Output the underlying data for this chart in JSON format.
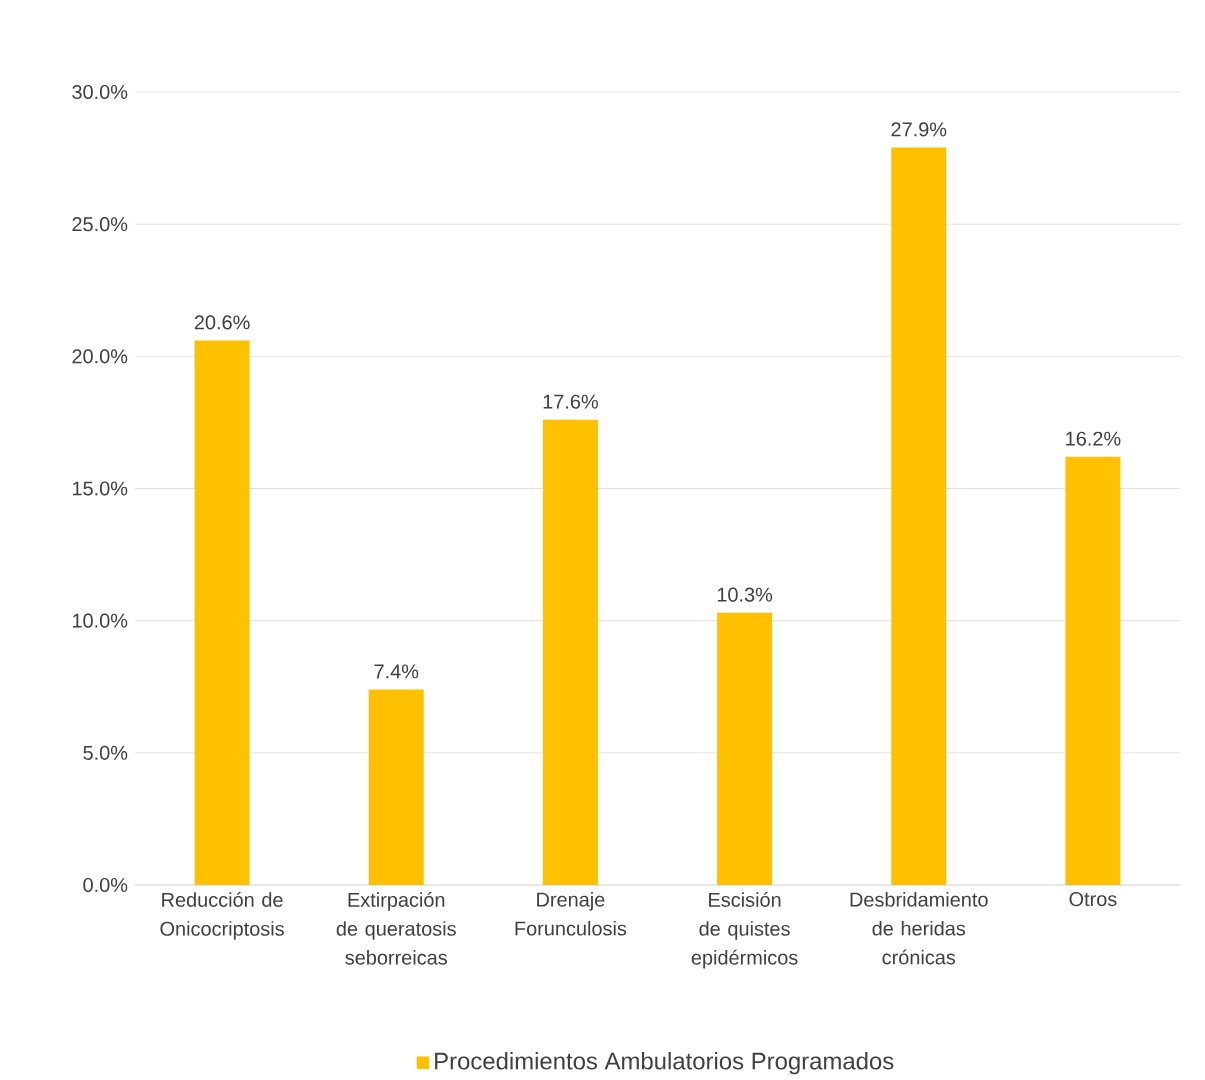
{
  "chart_data": {
    "type": "bar",
    "categories": [
      "Reducción de Onicocriptosis",
      "Extirpación de queratosis seborreicas",
      "Drenaje Forunculosis",
      "Escisión de quistes epidérmicos",
      "Desbridamiento de heridas crónicas",
      "Otros"
    ],
    "series": [
      {
        "name": "Procedimientos Ambulatorios Programados",
        "color": "#ffc000",
        "values": [
          20.6,
          7.4,
          17.6,
          10.3,
          27.9,
          16.2
        ],
        "value_labels": [
          "20.6%",
          "7.4%",
          "17.6%",
          "10.3%",
          "27.9%",
          "16.2%"
        ]
      }
    ],
    "ylim": [
      0,
      30
    ],
    "yticks": [
      {
        "value": 0,
        "label": "0.0%"
      },
      {
        "value": 5,
        "label": "5.0%"
      },
      {
        "value": 10,
        "label": "10.0%"
      },
      {
        "value": 15,
        "label": "15.0%"
      },
      {
        "value": 20,
        "label": "20.0%"
      },
      {
        "value": 25,
        "label": "25.0%"
      },
      {
        "value": 30,
        "label": "30.0%"
      }
    ],
    "grid": "y",
    "legend": "bottom"
  }
}
